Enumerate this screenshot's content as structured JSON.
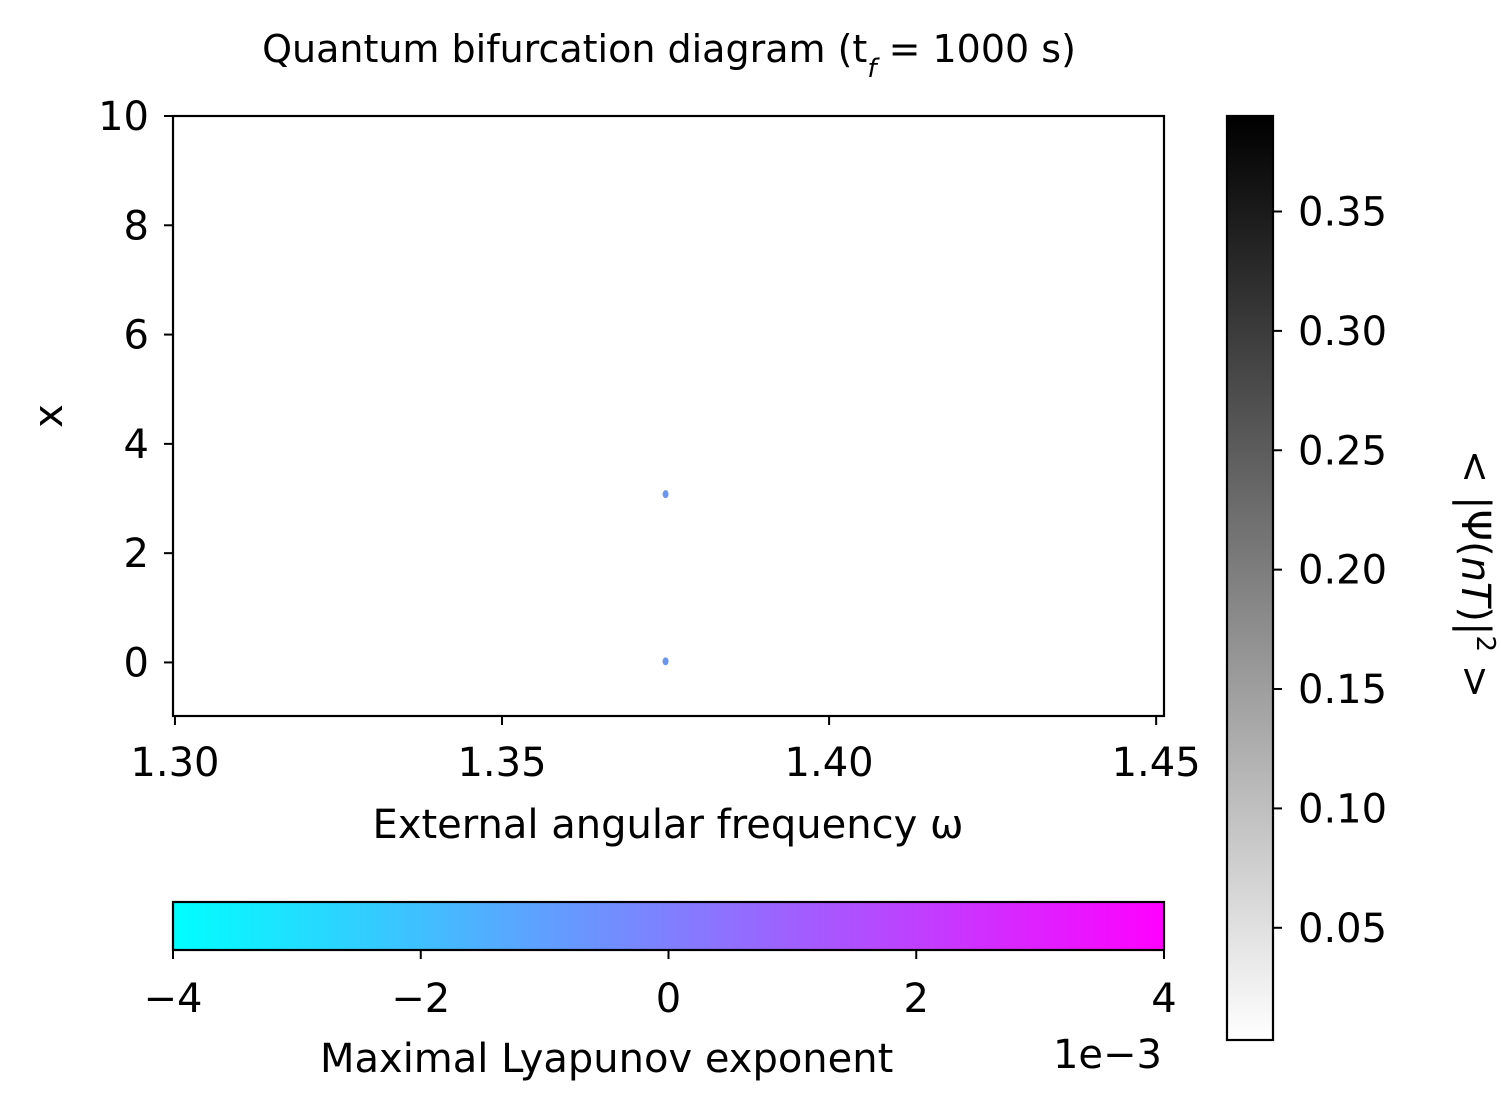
{
  "chart_data": {
    "type": "scatter",
    "title_prefix": "Quantum bifurcation diagram (t",
    "title_subscript": "f",
    "title_suffix": " = 1000 s)",
    "xlabel": "External angular frequency ω",
    "ylabel": "x",
    "xlim": [
      1.2997,
      1.4512
    ],
    "ylim": [
      -0.98,
      10.0
    ],
    "xticks": [
      {
        "value": 1.3,
        "label": "1.30"
      },
      {
        "value": 1.35,
        "label": "1.35"
      },
      {
        "value": 1.4,
        "label": "1.40"
      },
      {
        "value": 1.45,
        "label": "1.45"
      }
    ],
    "yticks": [
      {
        "value": 0,
        "label": "0"
      },
      {
        "value": 2,
        "label": "2"
      },
      {
        "value": 4,
        "label": "4"
      },
      {
        "value": 6,
        "label": "6"
      },
      {
        "value": 8,
        "label": "8"
      },
      {
        "value": 10,
        "label": "10"
      }
    ],
    "points": [
      {
        "x": 1.375,
        "y": 3.08,
        "color": "#6b96f0"
      },
      {
        "x": 1.375,
        "y": 0.02,
        "color": "#6b96f0"
      }
    ],
    "colorbar_lyapunov": {
      "label": "Maximal Lyapunov exponent",
      "multiplier": "1e−3",
      "range": [
        -4,
        4
      ],
      "colormap": "cool",
      "color_min": "#00ffff",
      "color_max": "#ff00ff",
      "ticks": [
        {
          "value": -4,
          "label": "−4"
        },
        {
          "value": -2,
          "label": "−2"
        },
        {
          "value": 0,
          "label": "0"
        },
        {
          "value": 2,
          "label": "2"
        },
        {
          "value": 4,
          "label": "4"
        }
      ]
    },
    "colorbar_probability": {
      "label": "< |Ψ(nT)|² >",
      "label_parts": [
        "< |Ψ(",
        "nT",
        ")|",
        "2",
        " >"
      ],
      "range": [
        0.003,
        0.39
      ],
      "colormap": "gray_r",
      "color_min": "#ffffff",
      "color_max": "#000000",
      "ticks": [
        {
          "value": 0.05,
          "label": "0.05"
        },
        {
          "value": 0.1,
          "label": "0.10"
        },
        {
          "value": 0.15,
          "label": "0.15"
        },
        {
          "value": 0.2,
          "label": "0.20"
        },
        {
          "value": 0.25,
          "label": "0.25"
        },
        {
          "value": 0.3,
          "label": "0.30"
        },
        {
          "value": 0.35,
          "label": "0.35"
        }
      ]
    }
  }
}
